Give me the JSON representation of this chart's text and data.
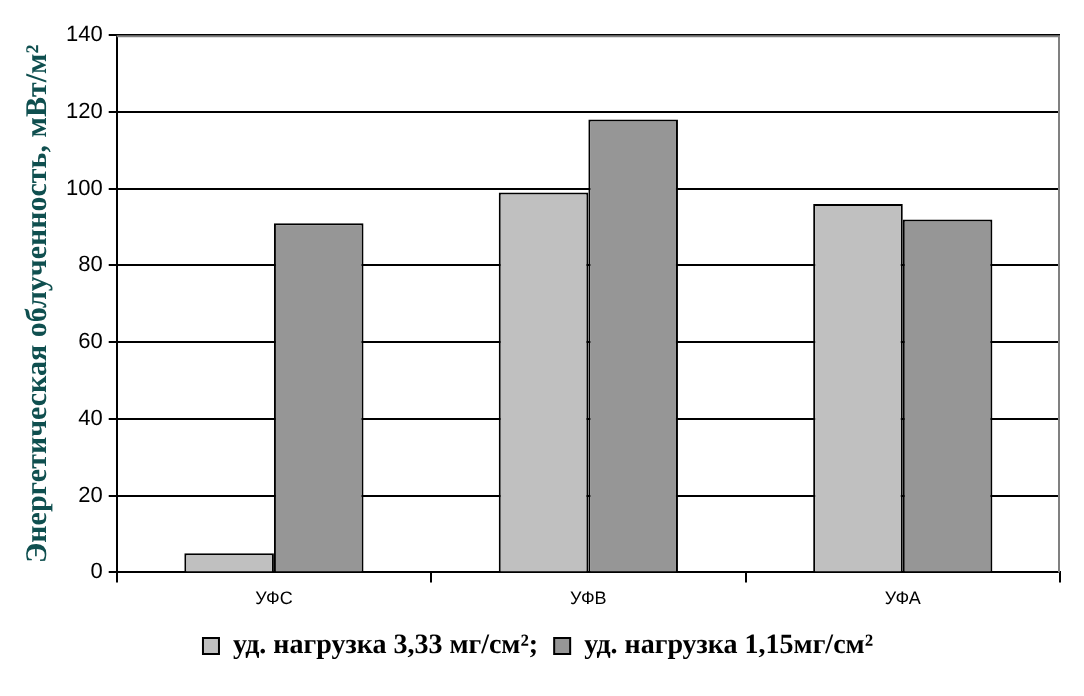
{
  "chart_data": {
    "type": "bar",
    "ylabel": "Энергетическая облученность, мВт/м²",
    "categories": [
      "УФС",
      "УФВ",
      "УФА"
    ],
    "series": [
      {
        "name": "уд. нагрузка 3,33 мг/см²;",
        "color": "#c0c0c0",
        "values": [
          5,
          99,
          96
        ]
      },
      {
        "name": "уд. нагрузка 1,15мг/см²",
        "color": "#969696",
        "values": [
          91,
          118,
          92
        ]
      }
    ],
    "ylim": [
      0,
      140
    ],
    "yticks": [
      0,
      20,
      40,
      60,
      80,
      100,
      120,
      140
    ],
    "grid": "y",
    "legend": "bottom"
  }
}
